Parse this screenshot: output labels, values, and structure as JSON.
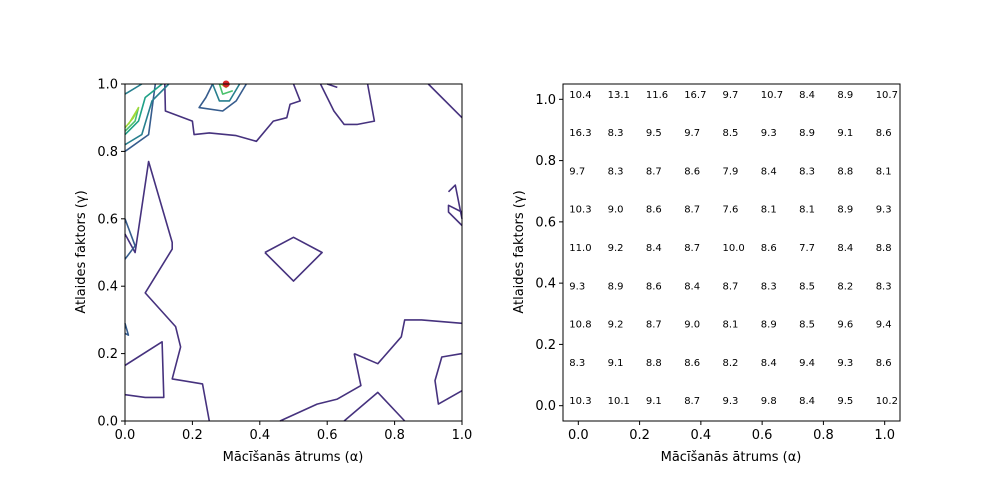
{
  "chart_data": [
    {
      "type": "contour",
      "xlabel": "Mācīšanās ātrums (α)",
      "ylabel": "Atlaides faktors (γ)",
      "xlim": [
        0,
        1
      ],
      "ylim": [
        0,
        1
      ],
      "x_ticks": [
        "0.0",
        "0.2",
        "0.4",
        "0.6",
        "0.8",
        "1.0"
      ],
      "y_ticks": [
        "0.0",
        "0.2",
        "0.4",
        "0.6",
        "0.8",
        "1.0"
      ],
      "grid": false,
      "level_colors": [
        "#46327e",
        "#365c8d",
        "#277f8e",
        "#1fa187",
        "#4ac16d",
        "#a0da39",
        "#fde725"
      ],
      "marker": {
        "x": 0.3,
        "y": 1.0,
        "color": "#d62728"
      }
    },
    {
      "type": "table",
      "xlabel": "Mācīšanās ātrums (α)",
      "ylabel": "Atlaides faktors (γ)",
      "x_values": [
        0.0,
        0.125,
        0.25,
        0.375,
        0.5,
        0.625,
        0.75,
        0.875,
        1.0
      ],
      "y_values": [
        1.0,
        0.875,
        0.75,
        0.625,
        0.5,
        0.375,
        0.25,
        0.125,
        0.0
      ],
      "x_ticks": [
        "0.0",
        "0.2",
        "0.4",
        "0.6",
        "0.8",
        "1.0"
      ],
      "y_ticks": [
        "0.0",
        "0.2",
        "0.4",
        "0.6",
        "0.8",
        "1.0"
      ],
      "xlim": [
        -0.05,
        1.05
      ],
      "ylim": [
        -0.05,
        1.05
      ],
      "grid": false,
      "rows": [
        [
          "10.4",
          "13.1",
          "11.6",
          "16.7",
          "9.7",
          "10.7",
          "8.4",
          "8.9",
          "10.7"
        ],
        [
          "16.3",
          "8.3",
          "9.5",
          "9.7",
          "8.5",
          "9.3",
          "8.9",
          "9.1",
          "8.6"
        ],
        [
          "9.7",
          "8.3",
          "8.7",
          "8.6",
          "7.9",
          "8.4",
          "8.3",
          "8.8",
          "8.1"
        ],
        [
          "10.3",
          "9.0",
          "8.6",
          "8.7",
          "7.6",
          "8.1",
          "8.1",
          "8.9",
          "9.3"
        ],
        [
          "11.0",
          "9.2",
          "8.4",
          "8.7",
          "10.0",
          "8.6",
          "7.7",
          "8.4",
          "8.8"
        ],
        [
          "9.3",
          "8.9",
          "8.6",
          "8.4",
          "8.7",
          "8.3",
          "8.5",
          "8.2",
          "8.3"
        ],
        [
          "10.8",
          "9.2",
          "8.7",
          "9.0",
          "8.1",
          "8.9",
          "8.5",
          "9.6",
          "9.4"
        ],
        [
          "8.3",
          "9.1",
          "8.8",
          "8.6",
          "8.2",
          "8.4",
          "9.4",
          "9.3",
          "8.6"
        ],
        [
          "10.3",
          "10.1",
          "9.1",
          "8.7",
          "9.3",
          "9.8",
          "8.4",
          "9.5",
          "10.2"
        ]
      ]
    }
  ]
}
